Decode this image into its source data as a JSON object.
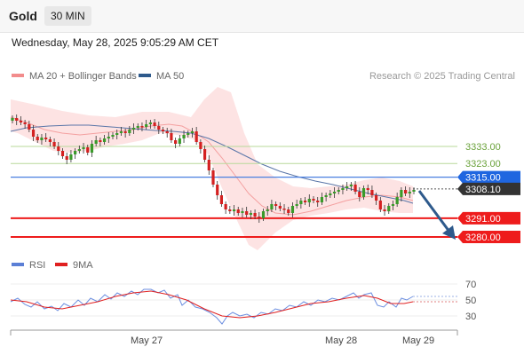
{
  "header": {
    "instrument": "Gold",
    "timeframe": "30 MIN"
  },
  "datetime": "Wednesday, May 28, 2025 9:05:29 AM CET",
  "legend": {
    "bb": {
      "label": "MA 20 + Bollinger Bands",
      "color": "#f28c8c"
    },
    "ma50": {
      "label": "MA 50",
      "color": "#2e5a8c"
    },
    "rsi": {
      "label": "RSI",
      "color": "#5b7fd6"
    },
    "ma9": {
      "label": "9MA",
      "color": "#e02020"
    }
  },
  "copyright": "Research © 2025 Trading Central",
  "levels": [
    {
      "value": "3333.00",
      "kind": "resistance"
    },
    {
      "value": "3323.00",
      "kind": "resistance"
    },
    {
      "value": "3315.00",
      "kind": "pivot"
    },
    {
      "value": "3308.10",
      "kind": "last"
    },
    {
      "value": "3291.00",
      "kind": "support"
    },
    {
      "value": "3280.00",
      "kind": "support"
    }
  ],
  "rsi_ticks": [
    "70",
    "50",
    "30"
  ],
  "x_labels": [
    "May 27",
    "May 28",
    "May 29"
  ]
}
